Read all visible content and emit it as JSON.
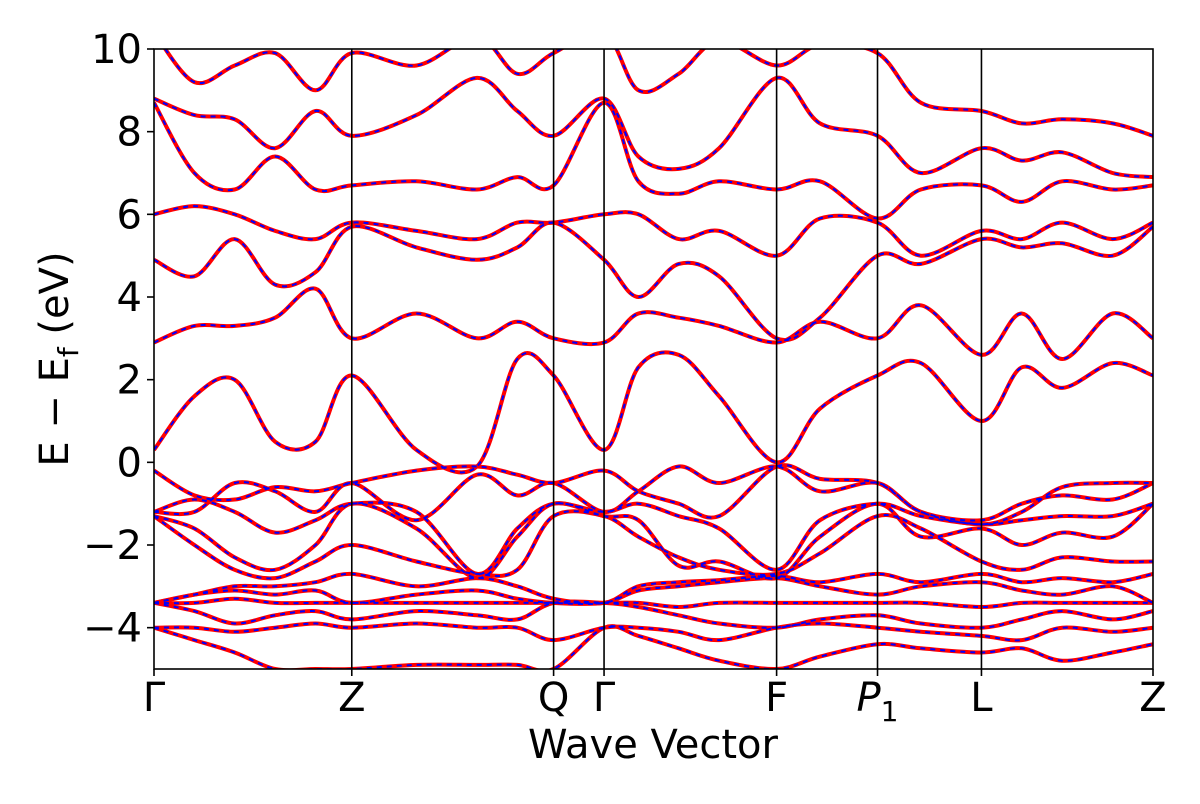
{
  "chart_data": {
    "type": "line",
    "xlabel": "Wave Vector",
    "ylabel": "E − E",
    "ylabel_sub": "f",
    "ylabel_unit": " (eV)",
    "ylim": [
      -5,
      10
    ],
    "yticks": [
      -4,
      -2,
      0,
      2,
      4,
      6,
      8,
      10
    ],
    "ytick_labels": [
      "−4",
      "−2",
      "0",
      "2",
      "4",
      "6",
      "8",
      "10"
    ],
    "kpoints": [
      {
        "label": "Γ",
        "sub": "",
        "italic": false,
        "x": 0
      },
      {
        "label": "Z",
        "sub": "",
        "italic": false,
        "x": 1.96
      },
      {
        "label": "Q",
        "sub": "",
        "italic": false,
        "x": 3.96
      },
      {
        "label": "Γ",
        "sub": "",
        "italic": false,
        "x": 4.46
      },
      {
        "label": "F",
        "sub": "",
        "italic": false,
        "x": 6.17
      },
      {
        "label": "P",
        "sub": "1",
        "italic": true,
        "x": 7.17
      },
      {
        "label": "L",
        "sub": "",
        "italic": false,
        "x": 8.2
      },
      {
        "label": "Z",
        "sub": "",
        "italic": false,
        "x": 9.9
      }
    ],
    "colors": {
      "solid": "#ff0000",
      "dashed": "#0000ff"
    },
    "bands": [
      {
        "x": [
          0,
          0.4,
          0.8,
          1.2,
          1.6,
          1.96,
          2.6,
          3.2,
          3.6,
          3.96,
          4.46,
          4.8,
          5.2,
          5.6,
          6.17,
          6.6,
          7.17,
          7.6,
          8.2,
          8.6,
          9.0,
          9.5,
          9.9
        ],
        "y": [
          -4.0,
          -4.3,
          -4.6,
          -5.0,
          -5.0,
          -5.0,
          -4.9,
          -4.9,
          -4.9,
          -5.0,
          -4.0,
          -4.2,
          -4.5,
          -4.8,
          -5.0,
          -4.7,
          -4.4,
          -4.5,
          -4.6,
          -4.5,
          -4.8,
          -4.6,
          -4.4
        ]
      },
      {
        "x": [
          0,
          0.4,
          0.8,
          1.2,
          1.6,
          1.96,
          2.6,
          3.2,
          3.6,
          3.96,
          4.46,
          4.8,
          5.2,
          5.6,
          6.17,
          6.6,
          7.17,
          7.6,
          8.2,
          8.6,
          9.0,
          9.5,
          9.9
        ],
        "y": [
          -4.0,
          -4.0,
          -4.1,
          -4.0,
          -3.9,
          -4.0,
          -3.9,
          -4.0,
          -4.0,
          -4.3,
          -4.0,
          -4.0,
          -4.1,
          -4.3,
          -4.0,
          -3.9,
          -4.0,
          -4.1,
          -4.2,
          -4.3,
          -4.0,
          -4.1,
          -4.0
        ]
      },
      {
        "x": [
          0,
          0.4,
          0.8,
          1.2,
          1.6,
          1.96,
          2.6,
          3.2,
          3.6,
          3.96,
          4.46,
          4.8,
          5.2,
          5.6,
          6.17,
          6.6,
          7.17,
          7.6,
          8.2,
          8.6,
          9.0,
          9.5,
          9.9
        ],
        "y": [
          -3.4,
          -3.6,
          -3.9,
          -3.7,
          -3.6,
          -3.8,
          -3.6,
          -3.7,
          -3.8,
          -3.4,
          -3.4,
          -3.5,
          -3.7,
          -3.9,
          -4.0,
          -3.8,
          -3.7,
          -3.9,
          -4.0,
          -3.8,
          -3.6,
          -3.8,
          -3.6
        ]
      },
      {
        "x": [
          0,
          0.4,
          0.8,
          1.2,
          1.6,
          1.96,
          2.6,
          3.2,
          3.6,
          3.96,
          4.46,
          4.8,
          5.2,
          5.6,
          6.17,
          6.6,
          7.17,
          7.6,
          8.2,
          8.6,
          9.0,
          9.5,
          9.9
        ],
        "y": [
          -3.4,
          -3.4,
          -3.3,
          -3.4,
          -3.4,
          -3.4,
          -3.4,
          -3.4,
          -3.4,
          -3.4,
          -3.4,
          -3.4,
          -3.5,
          -3.4,
          -3.4,
          -3.4,
          -3.4,
          -3.4,
          -3.5,
          -3.4,
          -3.4,
          -3.4,
          -3.4
        ]
      },
      {
        "x": [
          0,
          0.4,
          0.8,
          1.2,
          1.6,
          1.96,
          2.6,
          3.2,
          3.6,
          3.96,
          4.46,
          4.8,
          5.2,
          5.6,
          6.17,
          6.6,
          7.17,
          7.6,
          8.2,
          8.6,
          9.0,
          9.5,
          9.9
        ],
        "y": [
          -3.4,
          -3.2,
          -3.1,
          -3.2,
          -3.1,
          -3.4,
          -3.2,
          -3.1,
          -3.3,
          -3.4,
          -3.4,
          -3.1,
          -3.0,
          -2.9,
          -2.8,
          -3.0,
          -3.2,
          -3.0,
          -2.9,
          -3.1,
          -3.2,
          -3.0,
          -3.4
        ]
      },
      {
        "x": [
          0,
          0.4,
          0.8,
          1.2,
          1.6,
          1.96,
          2.6,
          3.2,
          3.6,
          3.96,
          4.46,
          4.8,
          5.2,
          5.6,
          6.17,
          6.6,
          7.17,
          7.6,
          8.2,
          8.6,
          9.0,
          9.5,
          9.9
        ],
        "y": [
          -3.4,
          -3.2,
          -3.0,
          -3.0,
          -2.9,
          -2.7,
          -3.0,
          -2.8,
          -3.0,
          -3.3,
          -3.4,
          -3.0,
          -2.9,
          -2.85,
          -2.75,
          -2.9,
          -2.7,
          -2.9,
          -2.7,
          -2.9,
          -2.8,
          -2.9,
          -2.7
        ]
      },
      {
        "x": [
          0,
          0.4,
          0.8,
          1.2,
          1.6,
          1.96,
          2.6,
          3.2,
          3.6,
          3.96,
          4.46,
          4.8,
          5.2,
          5.6,
          6.17,
          6.6,
          7.17,
          7.6,
          8.2,
          8.6,
          9.0,
          9.5,
          9.9
        ],
        "y": [
          -1.3,
          -2.0,
          -2.6,
          -2.8,
          -2.4,
          -2.0,
          -2.4,
          -2.7,
          -2.6,
          -1.3,
          -1.3,
          -1.8,
          -2.3,
          -2.6,
          -2.7,
          -2.2,
          -1.3,
          -1.6,
          -2.4,
          -2.6,
          -2.3,
          -2.4,
          -2.4
        ]
      },
      {
        "x": [
          0,
          0.4,
          0.8,
          1.2,
          1.6,
          1.96,
          2.6,
          3.2,
          3.6,
          3.96,
          4.46,
          4.8,
          5.2,
          5.6,
          6.17,
          6.6,
          7.17,
          7.6,
          8.2,
          8.6,
          9.0,
          9.5,
          9.9
        ],
        "y": [
          -1.3,
          -1.6,
          -2.3,
          -2.6,
          -2.0,
          -1.0,
          -1.6,
          -2.8,
          -1.8,
          -1.0,
          -1.3,
          -1.4,
          -2.5,
          -2.4,
          -2.8,
          -1.8,
          -1.0,
          -1.8,
          -1.6,
          -2.0,
          -1.7,
          -1.8,
          -1.0
        ]
      },
      {
        "x": [
          0,
          0.4,
          0.8,
          1.2,
          1.6,
          1.96,
          2.6,
          3.2,
          3.6,
          3.96,
          4.46,
          4.8,
          5.2,
          5.6,
          6.17,
          6.6,
          7.17,
          7.6,
          8.2,
          8.6,
          9.0,
          9.5,
          9.9
        ],
        "y": [
          -1.2,
          -0.9,
          -1.2,
          -1.7,
          -1.4,
          -1.0,
          -1.2,
          -2.7,
          -1.6,
          -1.0,
          -1.2,
          -1.0,
          -1.3,
          -1.6,
          -2.6,
          -1.4,
          -1.0,
          -1.3,
          -1.5,
          -1.4,
          -1.3,
          -1.3,
          -1.0
        ]
      },
      {
        "x": [
          0,
          0.4,
          0.8,
          1.2,
          1.6,
          1.96,
          2.6,
          3.2,
          3.6,
          3.96,
          4.46,
          4.8,
          5.2,
          5.6,
          6.17,
          6.6,
          7.17,
          7.6,
          8.2,
          8.6,
          9.0,
          9.5,
          9.9
        ],
        "y": [
          -1.2,
          -1.2,
          -0.5,
          -0.7,
          -1.2,
          -0.5,
          -1.4,
          -0.3,
          -0.8,
          -0.5,
          -1.2,
          -0.7,
          -0.1,
          -0.5,
          -0.1,
          -0.7,
          -0.5,
          -1.2,
          -1.4,
          -1.0,
          -0.8,
          -0.9,
          -0.5
        ]
      },
      {
        "x": [
          0,
          0.4,
          0.8,
          1.2,
          1.6,
          1.96,
          2.6,
          3.2,
          3.6,
          3.96,
          4.46,
          4.8,
          5.2,
          5.6,
          6.17,
          6.6,
          7.17,
          7.6,
          8.2,
          8.6,
          9.0,
          9.5,
          9.9
        ],
        "y": [
          -0.2,
          -0.8,
          -0.9,
          -0.6,
          -0.7,
          -0.5,
          -0.2,
          -0.1,
          -0.3,
          -0.5,
          -0.2,
          -0.7,
          -1.0,
          -1.3,
          -0.1,
          -0.4,
          -0.5,
          -1.2,
          -1.5,
          -1.2,
          -0.6,
          -0.5,
          -0.5
        ]
      },
      {
        "x": [
          0,
          0.4,
          0.8,
          1.2,
          1.6,
          1.96,
          2.6,
          3.2,
          3.6,
          3.96,
          4.46,
          4.8,
          5.2,
          5.6,
          6.17,
          6.6,
          7.17,
          7.6,
          8.2,
          8.6,
          9.0,
          9.5,
          9.9
        ],
        "y": [
          0.3,
          1.6,
          2.0,
          0.5,
          0.5,
          2.1,
          0.3,
          -0.1,
          2.5,
          2.1,
          0.3,
          2.3,
          2.6,
          1.6,
          0.0,
          1.3,
          2.1,
          2.4,
          1.0,
          2.3,
          1.8,
          2.4,
          2.1
        ]
      },
      {
        "x": [
          0,
          0.4,
          0.8,
          1.2,
          1.6,
          1.96,
          2.6,
          3.2,
          3.6,
          3.96,
          4.46,
          4.8,
          5.2,
          5.6,
          6.17,
          6.6,
          7.17,
          7.6,
          8.2,
          8.6,
          9.0,
          9.5,
          9.9
        ],
        "y": [
          2.9,
          3.3,
          3.3,
          3.5,
          4.2,
          3.0,
          3.6,
          3.0,
          3.4,
          3.0,
          2.9,
          3.6,
          3.5,
          3.3,
          2.9,
          3.4,
          3.0,
          3.8,
          2.6,
          3.6,
          2.5,
          3.6,
          3.0
        ]
      },
      {
        "x": [
          0,
          0.4,
          0.8,
          1.2,
          1.6,
          1.96,
          2.6,
          3.2,
          3.6,
          3.96,
          4.46,
          4.8,
          5.2,
          5.6,
          6.17,
          6.6,
          7.17,
          7.6,
          8.2,
          8.6,
          9.0,
          9.5,
          9.9
        ],
        "y": [
          4.9,
          4.5,
          5.4,
          4.3,
          4.6,
          5.7,
          5.2,
          4.9,
          5.2,
          5.8,
          4.9,
          4.0,
          4.8,
          4.5,
          3.0,
          3.5,
          5.0,
          4.8,
          5.4,
          5.2,
          5.3,
          5.0,
          5.7
        ]
      },
      {
        "x": [
          0,
          0.4,
          0.8,
          1.2,
          1.6,
          1.96,
          2.6,
          3.2,
          3.6,
          3.96,
          4.46,
          4.8,
          5.2,
          5.6,
          6.17,
          6.6,
          7.17,
          7.6,
          8.2,
          8.6,
          9.0,
          9.5,
          9.9
        ],
        "y": [
          6.0,
          6.2,
          6.0,
          5.6,
          5.4,
          5.8,
          5.6,
          5.4,
          5.8,
          5.8,
          6.0,
          6.0,
          5.4,
          5.6,
          5.0,
          5.9,
          5.8,
          5.0,
          5.6,
          5.4,
          5.8,
          5.4,
          5.8
        ]
      },
      {
        "x": [
          0,
          0.4,
          0.8,
          1.2,
          1.6,
          1.96,
          2.6,
          3.2,
          3.6,
          3.96,
          4.46,
          4.8,
          5.2,
          5.6,
          6.17,
          6.6,
          7.17,
          7.6,
          8.2,
          8.6,
          9.0,
          9.5,
          9.9
        ],
        "y": [
          8.7,
          7.0,
          6.6,
          7.4,
          6.6,
          6.7,
          6.8,
          6.6,
          6.9,
          6.7,
          8.7,
          6.8,
          6.5,
          6.8,
          6.6,
          6.8,
          5.9,
          6.6,
          6.7,
          6.3,
          6.8,
          6.6,
          6.7
        ]
      },
      {
        "x": [
          0,
          0.4,
          0.8,
          1.2,
          1.6,
          1.96,
          2.6,
          3.2,
          3.6,
          3.96,
          4.46,
          4.8,
          5.2,
          5.6,
          6.17,
          6.6,
          7.17,
          7.6,
          8.2,
          8.6,
          9.0,
          9.5,
          9.9
        ],
        "y": [
          8.8,
          8.4,
          8.3,
          7.6,
          8.5,
          7.9,
          8.4,
          9.3,
          8.5,
          7.9,
          8.8,
          7.4,
          7.1,
          7.6,
          9.3,
          8.2,
          7.9,
          7.0,
          7.6,
          7.3,
          7.5,
          7.0,
          6.9
        ]
      },
      {
        "x": [
          0,
          0.4,
          0.8,
          1.2,
          1.6,
          1.96,
          2.6,
          3.2,
          3.6,
          3.96,
          4.46,
          4.8,
          5.2,
          5.6,
          6.17,
          6.6,
          7.17,
          7.6,
          8.2,
          8.6,
          9.0,
          9.5,
          9.9
        ],
        "y": [
          10.4,
          9.2,
          9.6,
          9.9,
          9.0,
          9.9,
          9.6,
          10.3,
          9.4,
          9.9,
          10.4,
          9.0,
          9.4,
          10.2,
          9.6,
          10.1,
          9.9,
          8.7,
          8.5,
          8.2,
          8.3,
          8.2,
          7.9
        ]
      }
    ]
  }
}
